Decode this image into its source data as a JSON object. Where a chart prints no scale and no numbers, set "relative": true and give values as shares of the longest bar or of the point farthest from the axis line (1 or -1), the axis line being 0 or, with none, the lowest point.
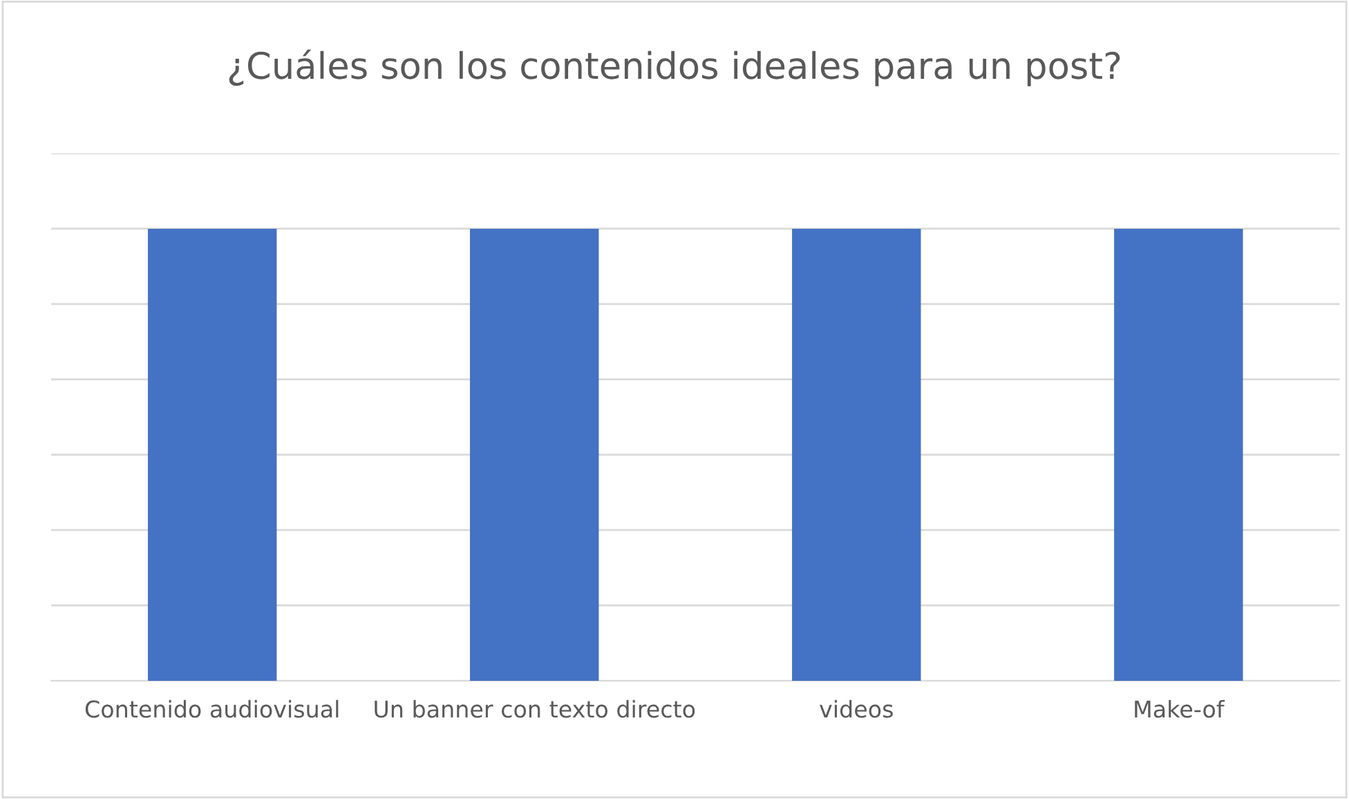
{
  "chart_data": {
    "type": "bar",
    "title": "¿Cuáles son los contenidos ideales para un post?",
    "categories": [
      "Contenido audiovisual",
      "Un banner con texto directo",
      "videos",
      "Make-of"
    ],
    "values": [
      1,
      1,
      1,
      1
    ],
    "color": "#4472c4",
    "relative": true,
    "grid": "y",
    "legend": false
  }
}
